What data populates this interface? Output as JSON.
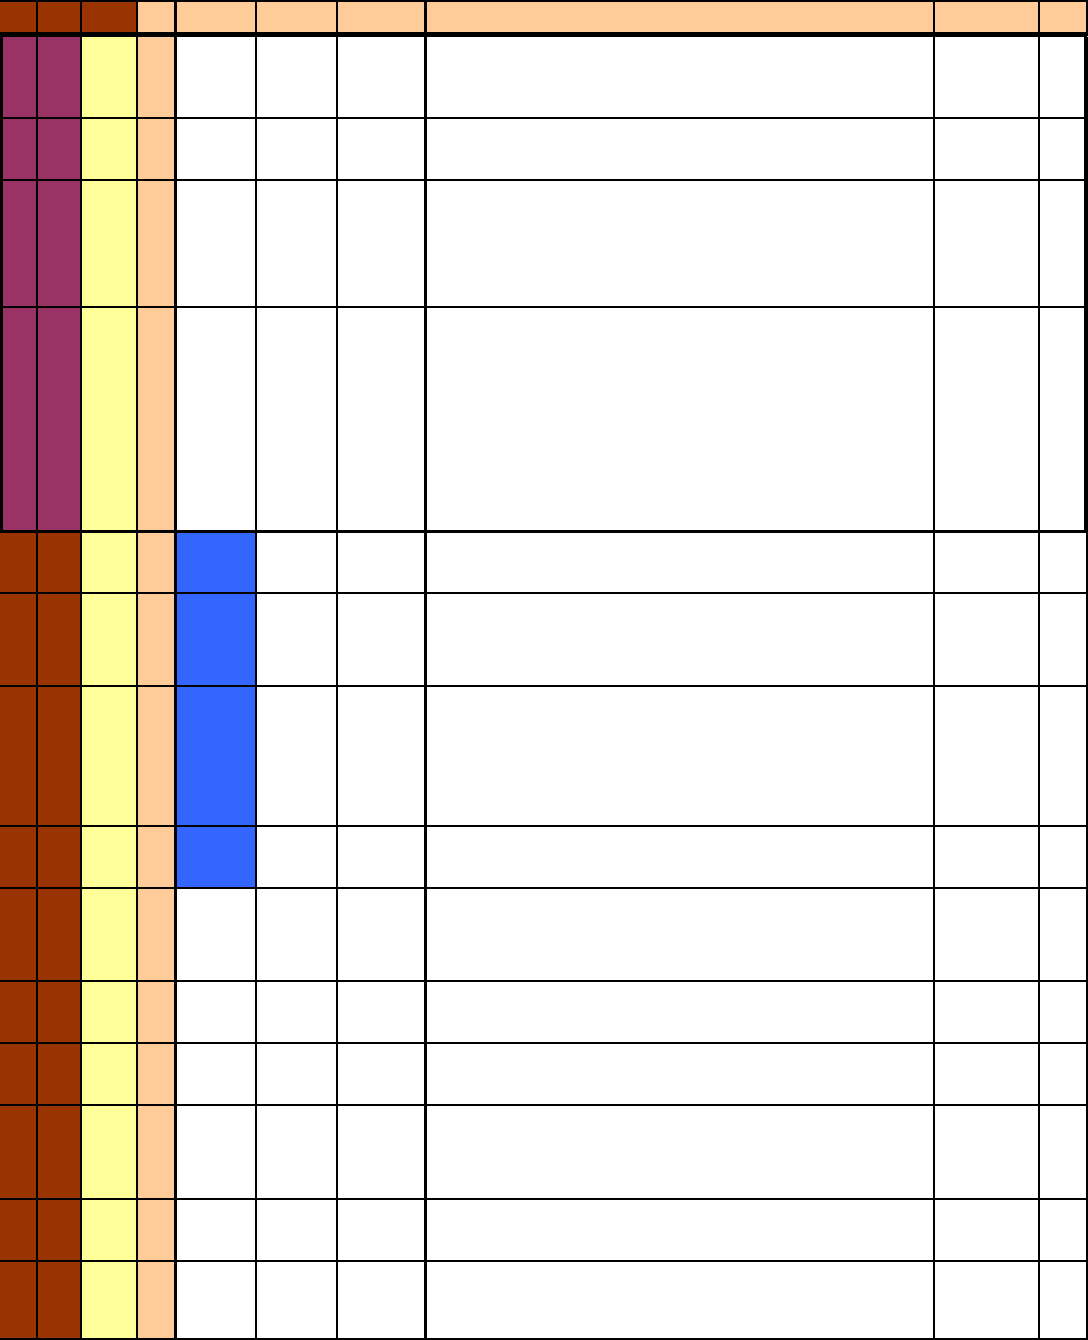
{
  "colors": {
    "header_dark": "#993300",
    "header_light": "#FFCC99",
    "group_a": "#993366",
    "group_b": "#993300",
    "col_yellow": "#FFFF99",
    "col_peach": "#FFCC99",
    "highlight_blue": "#3366FF",
    "empty": "#FFFFFF"
  },
  "header": {
    "cells": [
      "",
      "",
      "",
      "",
      "",
      "",
      "",
      "",
      "",
      ""
    ]
  },
  "rows": [
    {
      "group": "a",
      "highlighted": false,
      "cells": [
        "",
        "",
        "",
        "",
        "",
        "",
        "",
        "",
        "",
        ""
      ]
    },
    {
      "group": "a",
      "highlighted": false,
      "cells": [
        "",
        "",
        "",
        "",
        "",
        "",
        "",
        "",
        "",
        ""
      ]
    },
    {
      "group": "a",
      "highlighted": false,
      "cells": [
        "",
        "",
        "",
        "",
        "",
        "",
        "",
        "",
        "",
        ""
      ]
    },
    {
      "group": "a",
      "highlighted": false,
      "cells": [
        "",
        "",
        "",
        "",
        "",
        "",
        "",
        "",
        "",
        ""
      ]
    },
    {
      "group": "b",
      "highlighted": true,
      "cells": [
        "",
        "",
        "",
        "",
        "",
        "",
        "",
        "",
        "",
        ""
      ]
    },
    {
      "group": "b",
      "highlighted": true,
      "cells": [
        "",
        "",
        "",
        "",
        "",
        "",
        "",
        "",
        "",
        ""
      ]
    },
    {
      "group": "b",
      "highlighted": true,
      "cells": [
        "",
        "",
        "",
        "",
        "",
        "",
        "",
        "",
        "",
        ""
      ]
    },
    {
      "group": "b",
      "highlighted": true,
      "cells": [
        "",
        "",
        "",
        "",
        "",
        "",
        "",
        "",
        "",
        ""
      ]
    },
    {
      "group": "b",
      "highlighted": false,
      "cells": [
        "",
        "",
        "",
        "",
        "",
        "",
        "",
        "",
        "",
        ""
      ]
    },
    {
      "group": "b",
      "highlighted": false,
      "cells": [
        "",
        "",
        "",
        "",
        "",
        "",
        "",
        "",
        "",
        ""
      ]
    },
    {
      "group": "b",
      "highlighted": false,
      "cells": [
        "",
        "",
        "",
        "",
        "",
        "",
        "",
        "",
        "",
        ""
      ]
    },
    {
      "group": "b",
      "highlighted": false,
      "cells": [
        "",
        "",
        "",
        "",
        "",
        "",
        "",
        "",
        "",
        ""
      ]
    },
    {
      "group": "b",
      "highlighted": false,
      "cells": [
        "",
        "",
        "",
        "",
        "",
        "",
        "",
        "",
        "",
        ""
      ]
    },
    {
      "group": "b",
      "highlighted": false,
      "cells": [
        "",
        "",
        "",
        "",
        "",
        "",
        "",
        "",
        "",
        ""
      ]
    }
  ]
}
